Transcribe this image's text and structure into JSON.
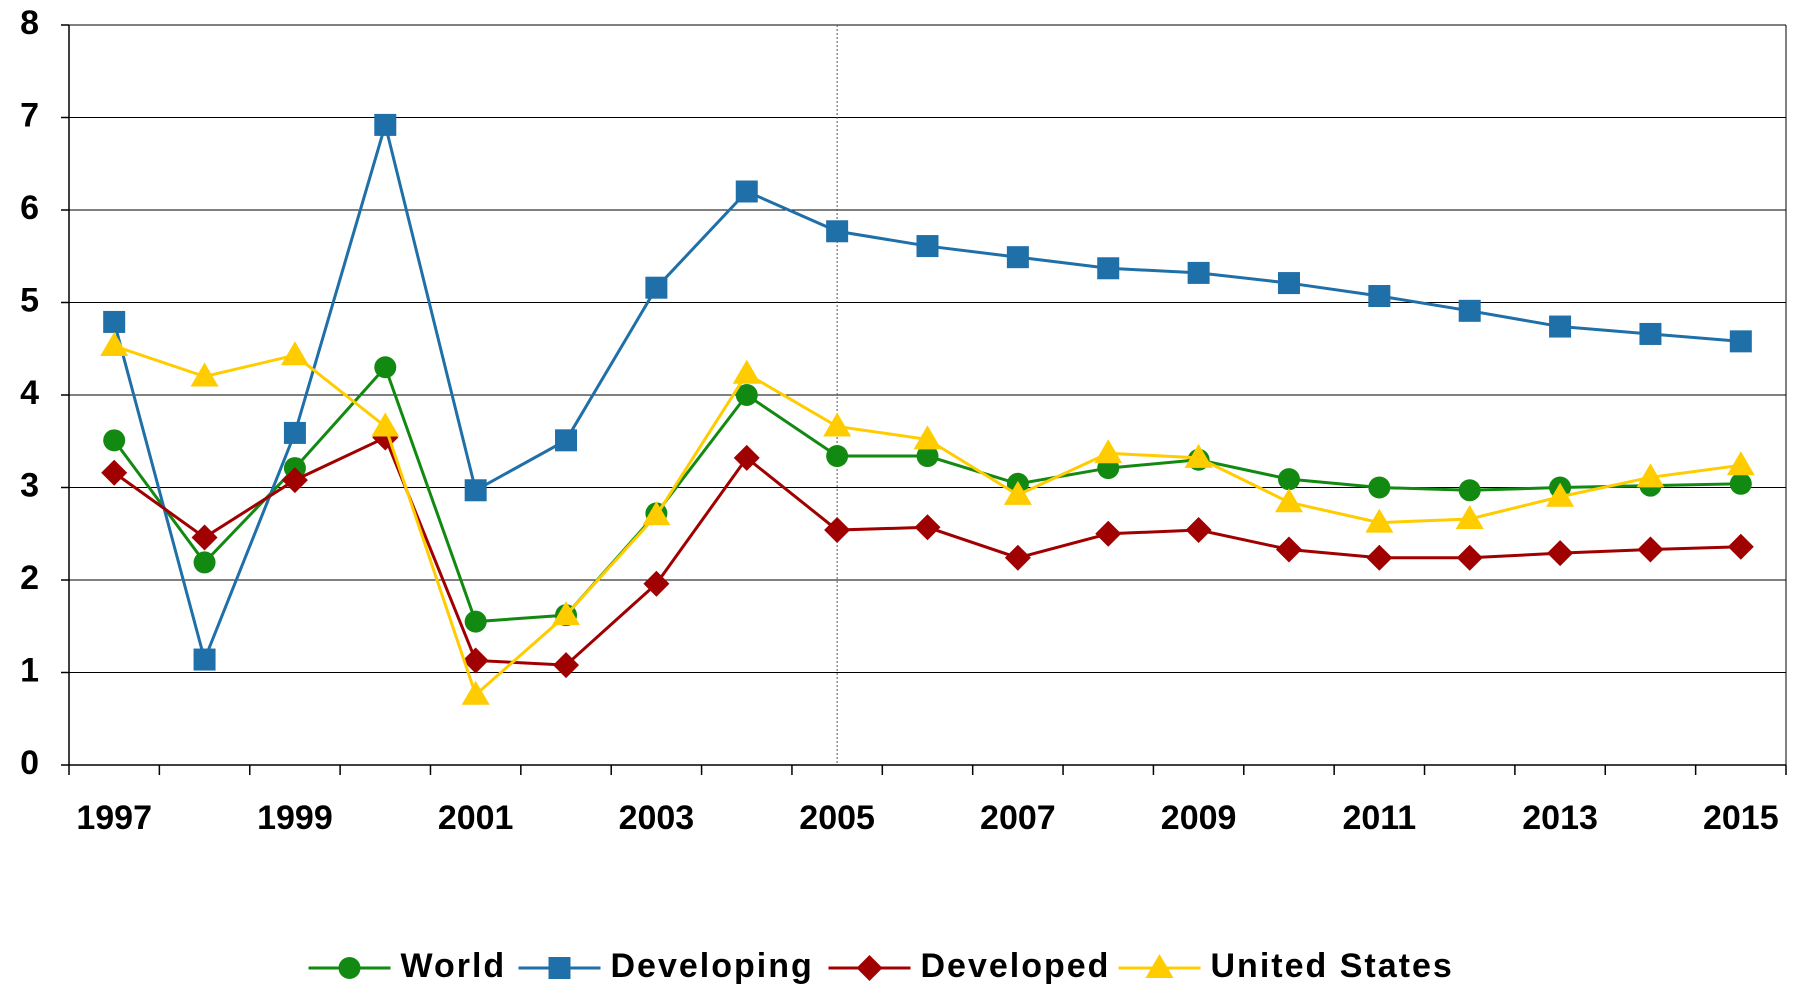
{
  "chart_data": {
    "type": "line",
    "categories": [
      "1997",
      null,
      "1999",
      null,
      "2001",
      null,
      "2003",
      null,
      "2005",
      null,
      "2007",
      null,
      "2009",
      null,
      "2011",
      null,
      "2013",
      null,
      "2015"
    ],
    "series": [
      {
        "name": "World",
        "color": "#128a12",
        "marker": "circle",
        "values": [
          3.51,
          2.19,
          3.21,
          4.3,
          1.55,
          1.62,
          2.72,
          4.0,
          3.34,
          3.34,
          3.04,
          3.21,
          3.3,
          3.09,
          3.0,
          2.97,
          3.0,
          3.02,
          3.04
        ]
      },
      {
        "name": "Developing",
        "color": "#1f6fa8",
        "marker": "square",
        "values": [
          4.79,
          1.14,
          3.59,
          6.92,
          2.97,
          3.51,
          5.16,
          6.2,
          5.77,
          5.61,
          5.49,
          5.37,
          5.32,
          5.21,
          5.07,
          4.91,
          4.74,
          4.66,
          4.58
        ]
      },
      {
        "name": "Developed",
        "color": "#a00000",
        "marker": "diamond",
        "values": [
          3.16,
          2.46,
          3.08,
          3.54,
          1.13,
          1.08,
          1.96,
          3.32,
          2.54,
          2.57,
          2.24,
          2.5,
          2.54,
          2.33,
          2.24,
          2.24,
          2.29,
          2.33,
          2.36
        ]
      },
      {
        "name": "United States",
        "color": "#ffcc00",
        "marker": "triangle",
        "values": [
          4.53,
          4.2,
          4.43,
          3.66,
          0.76,
          1.62,
          2.7,
          4.23,
          3.66,
          3.52,
          2.92,
          3.37,
          3.32,
          2.84,
          2.62,
          2.66,
          2.9,
          3.11,
          3.24
        ]
      }
    ],
    "ylim": [
      0,
      8
    ],
    "yticks": [
      0,
      1,
      2,
      3,
      4,
      5,
      6,
      7,
      8
    ],
    "grid": true,
    "legend": "bottom"
  }
}
